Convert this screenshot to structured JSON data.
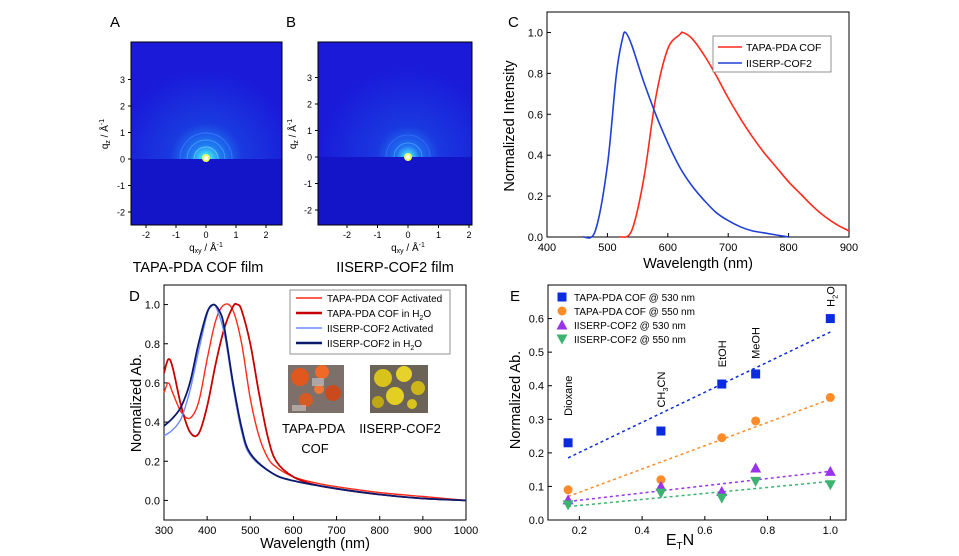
{
  "panel_letters": [
    "A",
    "B",
    "C",
    "D",
    "E"
  ],
  "colors": {
    "red": "#ff2a1a",
    "dark_red": "#c80000",
    "blue": "#1f3fd6",
    "light_blue": "#6f8cff",
    "navy": "#0c1a6e",
    "square_blue": "#0a2be0",
    "orange": "#ff8c28",
    "purple": "#9933ee",
    "green": "#3cb371",
    "pattern_background": "#1a1ad8"
  },
  "panel_a": {
    "letter": "A",
    "caption": "TAPA-PDA COF film",
    "ylabel": "q_z / Å^-1",
    "xlabel": "q_xy / Å^-1",
    "x_ticks": [
      "-2",
      "-1",
      "0",
      "1",
      "2"
    ],
    "y_ticks": [
      "3",
      "2",
      "1",
      "0",
      "-1",
      "-2"
    ]
  },
  "panel_b": {
    "letter": "B",
    "caption": "IISERP-COF2 film",
    "ylabel": "q_z / Å^-1",
    "xlabel": "q_xy / Å^-1",
    "x_ticks": [
      "-2",
      "-1",
      "0",
      "1",
      "2"
    ],
    "y_ticks": [
      "3",
      "2",
      "1",
      "0",
      "-1",
      "-2"
    ]
  },
  "panel_d_images": {
    "labels": [
      "TAPA-PDA COF",
      "IISERP-COF2"
    ]
  },
  "chart_data": [
    {
      "panel": "C",
      "type": "line",
      "xlabel": "Wavelength (nm)",
      "ylabel": "Normalized Intensity",
      "xlim": [
        400,
        900
      ],
      "ylim": [
        0,
        1.1
      ],
      "x_ticks": [
        400,
        500,
        600,
        700,
        800,
        900
      ],
      "y_ticks": [
        0.0,
        0.2,
        0.4,
        0.6,
        0.8,
        1.0
      ],
      "legend_position": "top-right",
      "series": [
        {
          "name": "TAPA-PDA COF",
          "color": "#ff2a1a",
          "x": [
            520,
            540,
            560,
            580,
            600,
            620,
            625,
            640,
            660,
            680,
            700,
            720,
            740,
            760,
            780,
            800,
            820,
            840,
            860,
            880,
            900
          ],
          "y": [
            0.0,
            0.03,
            0.28,
            0.68,
            0.92,
            0.99,
            1.0,
            0.97,
            0.89,
            0.79,
            0.68,
            0.58,
            0.49,
            0.41,
            0.34,
            0.27,
            0.21,
            0.15,
            0.1,
            0.06,
            0.03
          ]
        },
        {
          "name": "IISERP-COF2",
          "color": "#1f3fd6",
          "x": [
            460,
            480,
            500,
            515,
            525,
            530,
            540,
            560,
            580,
            600,
            620,
            640,
            660,
            680,
            700,
            720,
            740,
            760,
            780,
            800
          ],
          "y": [
            0.0,
            0.03,
            0.35,
            0.8,
            0.97,
            1.0,
            0.94,
            0.76,
            0.6,
            0.46,
            0.34,
            0.25,
            0.18,
            0.12,
            0.08,
            0.05,
            0.03,
            0.02,
            0.01,
            0.0
          ]
        }
      ]
    },
    {
      "panel": "D",
      "type": "line",
      "xlabel": "Wavelength (nm)",
      "ylabel": "Normalized Ab.",
      "xlim": [
        300,
        1000
      ],
      "ylim": [
        -0.1,
        1.1
      ],
      "x_ticks": [
        300,
        400,
        500,
        600,
        700,
        800,
        900,
        1000
      ],
      "y_ticks": [
        0.0,
        0.2,
        0.4,
        0.6,
        0.8,
        1.0
      ],
      "legend_position": "top-right",
      "series": [
        {
          "name": "TAPA-PDA COF Activated",
          "color": "#ff2a1a",
          "x": [
            300,
            310,
            320,
            340,
            360,
            380,
            400,
            420,
            440,
            460,
            480,
            500,
            520,
            540,
            560,
            600,
            650,
            700,
            800,
            900,
            1000
          ],
          "y": [
            0.55,
            0.6,
            0.55,
            0.45,
            0.42,
            0.5,
            0.72,
            0.92,
            1.0,
            0.97,
            0.8,
            0.52,
            0.33,
            0.22,
            0.17,
            0.12,
            0.09,
            0.07,
            0.04,
            0.02,
            0.0
          ]
        },
        {
          "name": "TAPA-PDA COF in H2O",
          "color": "#c80000",
          "x": [
            300,
            310,
            320,
            340,
            360,
            380,
            400,
            420,
            440,
            460,
            470,
            480,
            500,
            520,
            540,
            560,
            600,
            650,
            700,
            800,
            900,
            1000
          ],
          "y": [
            0.65,
            0.72,
            0.68,
            0.48,
            0.35,
            0.34,
            0.48,
            0.7,
            0.88,
            0.99,
            1.0,
            0.97,
            0.8,
            0.55,
            0.33,
            0.2,
            0.12,
            0.08,
            0.06,
            0.03,
            0.01,
            0.0
          ]
        },
        {
          "name": "IISERP-COF2 Activated",
          "color": "#6f8cff",
          "x": [
            300,
            320,
            340,
            360,
            380,
            400,
            410,
            420,
            440,
            460,
            480,
            500,
            550,
            600,
            700,
            800,
            900,
            1000
          ],
          "y": [
            0.33,
            0.36,
            0.42,
            0.56,
            0.76,
            0.95,
            0.99,
            0.99,
            0.85,
            0.58,
            0.35,
            0.23,
            0.14,
            0.1,
            0.06,
            0.03,
            0.01,
            0.0
          ]
        },
        {
          "name": "IISERP-COF2 in H2O",
          "color": "#0c1a6e",
          "x": [
            300,
            320,
            340,
            360,
            380,
            400,
            415,
            430,
            440,
            460,
            480,
            500,
            550,
            600,
            700,
            800,
            900,
            1000
          ],
          "y": [
            0.38,
            0.42,
            0.48,
            0.6,
            0.8,
            0.96,
            1.0,
            0.96,
            0.88,
            0.6,
            0.37,
            0.24,
            0.14,
            0.1,
            0.06,
            0.03,
            0.01,
            0.0
          ]
        }
      ]
    },
    {
      "panel": "E",
      "type": "scatter",
      "xlabel": "E_T N",
      "ylabel": "Normalized Ab.",
      "xlim": [
        0.1,
        1.05
      ],
      "ylim": [
        0.0,
        0.7
      ],
      "x_ticks": [
        0.2,
        0.4,
        0.6,
        0.8,
        1.0
      ],
      "y_ticks": [
        0.0,
        0.1,
        0.2,
        0.3,
        0.4,
        0.5,
        0.6
      ],
      "legend_position": "top-left",
      "solvents": [
        {
          "label": "Dioxane",
          "x": 0.164
        },
        {
          "label": "CH3CN",
          "x": 0.46
        },
        {
          "label": "EtOH",
          "x": 0.654
        },
        {
          "label": "MeOH",
          "x": 0.762
        },
        {
          "label": "H2O",
          "x": 1.0
        }
      ],
      "series": [
        {
          "name": "TAPA-PDA COF @ 530 nm",
          "color": "#0a2be0",
          "marker": "square",
          "x": [
            0.164,
            0.46,
            0.654,
            0.762,
            1.0
          ],
          "y": [
            0.23,
            0.265,
            0.405,
            0.435,
            0.6
          ],
          "fit": [
            [
              0.164,
              0.185
            ],
            [
              1.0,
              0.56
            ]
          ]
        },
        {
          "name": "TAPA-PDA COF @ 550 nm",
          "color": "#ff8c28",
          "marker": "circle",
          "x": [
            0.164,
            0.46,
            0.654,
            0.762,
            1.0
          ],
          "y": [
            0.09,
            0.12,
            0.245,
            0.295,
            0.365
          ],
          "fit": [
            [
              0.164,
              0.07
            ],
            [
              1.0,
              0.36
            ]
          ]
        },
        {
          "name": "IISERP-COF2 @ 530 nm",
          "color": "#9933ee",
          "marker": "triangle-up",
          "x": [
            0.164,
            0.46,
            0.654,
            0.762,
            1.0
          ],
          "y": [
            0.06,
            0.1,
            0.085,
            0.155,
            0.145
          ],
          "fit": [
            [
              0.164,
              0.055
            ],
            [
              1.0,
              0.145
            ]
          ]
        },
        {
          "name": "IISERP-COF2 @ 550 nm",
          "color": "#3cb371",
          "marker": "triangle-down",
          "x": [
            0.164,
            0.46,
            0.654,
            0.762,
            1.0
          ],
          "y": [
            0.045,
            0.08,
            0.065,
            0.115,
            0.105
          ],
          "fit": [
            [
              0.164,
              0.04
            ],
            [
              1.0,
              0.115
            ]
          ]
        }
      ]
    }
  ]
}
